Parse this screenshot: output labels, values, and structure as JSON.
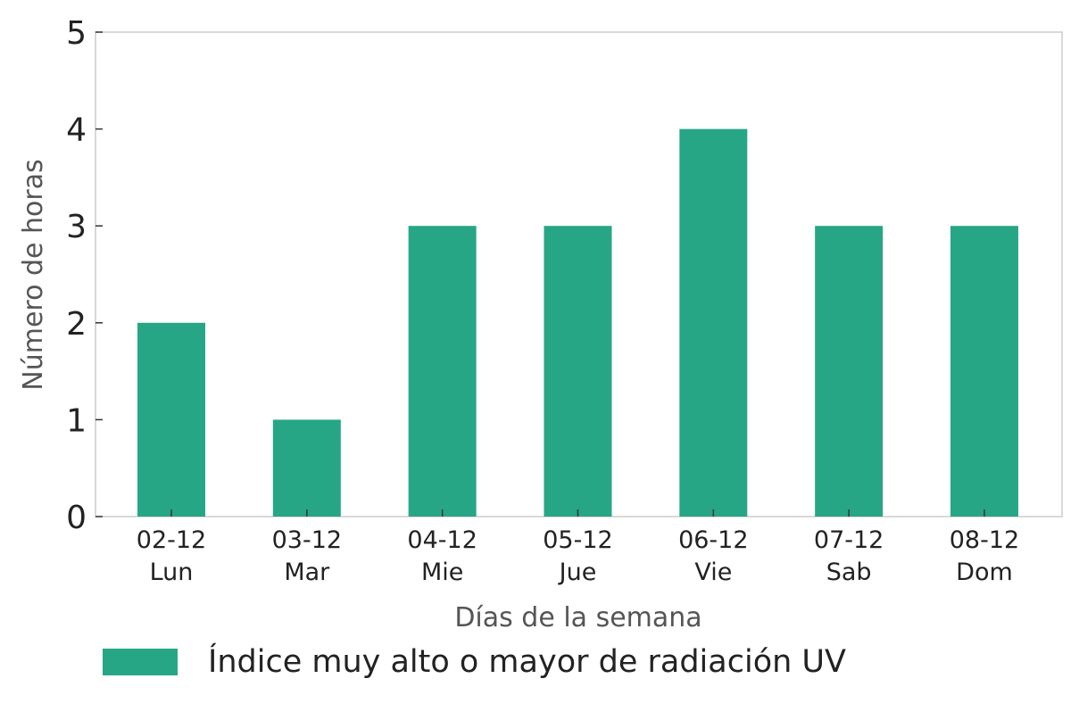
{
  "chart_data": {
    "type": "bar",
    "categories": [
      "02-12\nLun",
      "03-12\nMar",
      "04-12\nMie",
      "05-12\nJue",
      "06-12\nVie",
      "07-12\nSab",
      "08-12\nDom"
    ],
    "series": [
      {
        "name": "Índice muy alto o mayor de radiación UV",
        "values": [
          2,
          1,
          3,
          3,
          4,
          3,
          3
        ],
        "color": "#27a686"
      }
    ],
    "xlabel": "Días de la semana",
    "ylabel": "Número de horas",
    "ylim": [
      0,
      5
    ],
    "yticks": [
      0,
      1,
      2,
      3,
      4,
      5
    ],
    "grid": false,
    "legend_position": "bottom-left"
  },
  "colors": {
    "bar": "#27a686",
    "frame": "#cccccc",
    "text": "#222222",
    "label": "#555555"
  }
}
